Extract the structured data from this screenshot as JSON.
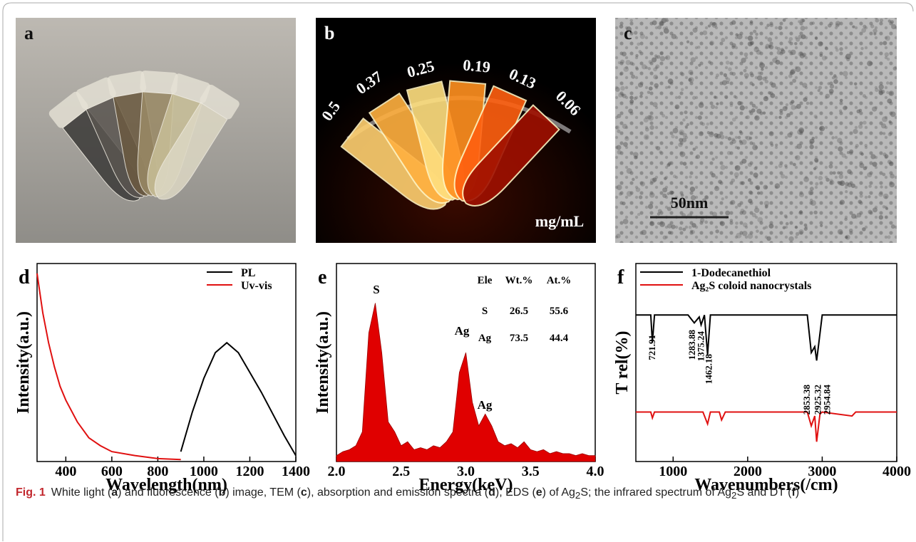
{
  "panels": [
    {
      "label": "a"
    },
    {
      "label": "b",
      "labels": [
        "0.5",
        "0.37",
        "0.25",
        "0.19",
        "0.13",
        "0.06"
      ],
      "unit": "mg/mL"
    },
    {
      "label": "c",
      "scale_bar": "50nm"
    }
  ],
  "chart_data": [
    {
      "type": "line",
      "label": "d",
      "xlabel": "Wavelength(nm)",
      "ylabel": "Intensity(a.u.)",
      "xlim": [
        275,
        1400
      ],
      "ylim": [
        0,
        1
      ],
      "xticks": [
        400,
        600,
        800,
        1000,
        1200,
        1400
      ],
      "legend": "upper right",
      "series": [
        {
          "name": "PL",
          "color": "#000000",
          "x": [
            900,
            950,
            1000,
            1050,
            1100,
            1150,
            1200,
            1250,
            1300,
            1350,
            1400
          ],
          "values": [
            0.05,
            0.25,
            0.42,
            0.55,
            0.6,
            0.55,
            0.45,
            0.35,
            0.24,
            0.13,
            0.03
          ]
        },
        {
          "name": "Uv-vis",
          "color": "#e01010",
          "x": [
            275,
            300,
            325,
            350,
            375,
            400,
            450,
            500,
            550,
            600,
            700,
            800,
            900
          ],
          "values": [
            0.95,
            0.75,
            0.6,
            0.48,
            0.38,
            0.31,
            0.2,
            0.12,
            0.08,
            0.05,
            0.03,
            0.015,
            0.01
          ]
        }
      ]
    },
    {
      "type": "area",
      "label": "e",
      "xlabel": "Energy(keV)",
      "ylabel": "Intensity(a.u.)",
      "color": "#e00000",
      "xlim": [
        2,
        4
      ],
      "ylim": [
        0,
        1
      ],
      "xticks": [
        {
          "value": 2,
          "label": "2.0"
        },
        {
          "value": 2.5,
          "label": "2.5"
        },
        {
          "value": 3,
          "label": "3.0"
        },
        {
          "value": 3.5,
          "label": "3.5"
        },
        {
          "value": 4,
          "label": "4.0"
        }
      ],
      "x": [
        2,
        2.05,
        2.1,
        2.15,
        2.2,
        2.25,
        2.3,
        2.35,
        2.4,
        2.45,
        2.5,
        2.55,
        2.6,
        2.65,
        2.7,
        2.75,
        2.8,
        2.85,
        2.9,
        2.95,
        3,
        3.05,
        3.1,
        3.15,
        3.2,
        3.25,
        3.3,
        3.35,
        3.4,
        3.45,
        3.5,
        3.55,
        3.6,
        3.65,
        3.7,
        3.75,
        3.8,
        3.85,
        3.9,
        3.95,
        4
      ],
      "values": [
        0.03,
        0.05,
        0.06,
        0.08,
        0.15,
        0.65,
        0.8,
        0.55,
        0.2,
        0.15,
        0.08,
        0.1,
        0.06,
        0.07,
        0.06,
        0.08,
        0.07,
        0.1,
        0.15,
        0.45,
        0.55,
        0.3,
        0.18,
        0.24,
        0.18,
        0.1,
        0.08,
        0.09,
        0.07,
        0.1,
        0.06,
        0.05,
        0.06,
        0.04,
        0.05,
        0.04,
        0.04,
        0.03,
        0.04,
        0.03,
        0.03
      ],
      "annotations": [
        "S",
        "Ag",
        "Ag"
      ],
      "table": [
        [
          "Ele",
          "Wt.%",
          "At.%"
        ],
        [
          "S",
          26.5,
          55.6
        ],
        [
          "Ag",
          73.5,
          44.4
        ]
      ]
    },
    {
      "type": "line",
      "label": "f",
      "xlabel": "Wavenumbers(/cm)",
      "ylabel": "T rel(%)",
      "xlim": [
        500,
        4000
      ],
      "ylim": [
        0,
        1
      ],
      "xticks": [
        1000,
        2000,
        3000,
        4000
      ],
      "legend": "upper left",
      "series": [
        {
          "name": "1-Dodecanethiol",
          "color": "#000000",
          "x": [
            500,
            700,
            721.91,
            750,
            1200,
            1283.88,
            1350,
            1375.24,
            1420,
            1462.18,
            1500,
            2800,
            2853.38,
            2900,
            2925.32,
            2954.84,
            3000,
            4000
          ],
          "values": [
            0.74,
            0.74,
            0.6,
            0.74,
            0.74,
            0.7,
            0.73,
            0.69,
            0.74,
            0.54,
            0.74,
            0.74,
            0.55,
            0.58,
            0.51,
            0.6,
            0.74,
            0.74
          ]
        },
        {
          "name": "Ag₂S coloid nanocrystals",
          "color": "#e01010",
          "x": [
            500,
            700,
            721.91,
            750,
            1400,
            1462.18,
            1500,
            1620,
            1650,
            1700,
            2800,
            2853.38,
            2900,
            2925.32,
            2970,
            3000,
            3400,
            3450,
            4000
          ],
          "values": [
            0.25,
            0.25,
            0.22,
            0.25,
            0.25,
            0.19,
            0.25,
            0.25,
            0.21,
            0.25,
            0.25,
            0.18,
            0.23,
            0.1,
            0.24,
            0.25,
            0.23,
            0.25,
            0.25
          ]
        }
      ],
      "peak_labels": [
        721.91,
        1283.88,
        1375.24,
        1462.18,
        2853.38,
        2925.32,
        2954.84
      ]
    }
  ],
  "caption": {
    "parts": [
      "Fig. 1",
      "White light (",
      "a",
      ") and fluorescence (",
      "b",
      ") image, TEM (",
      "c",
      "), absorption and emission spectra (",
      "d",
      "), EDS (",
      "e",
      ") of Ag",
      "2",
      "S; the infrared spectrum of Ag",
      "2",
      "S and DT (",
      "f",
      ")"
    ]
  }
}
